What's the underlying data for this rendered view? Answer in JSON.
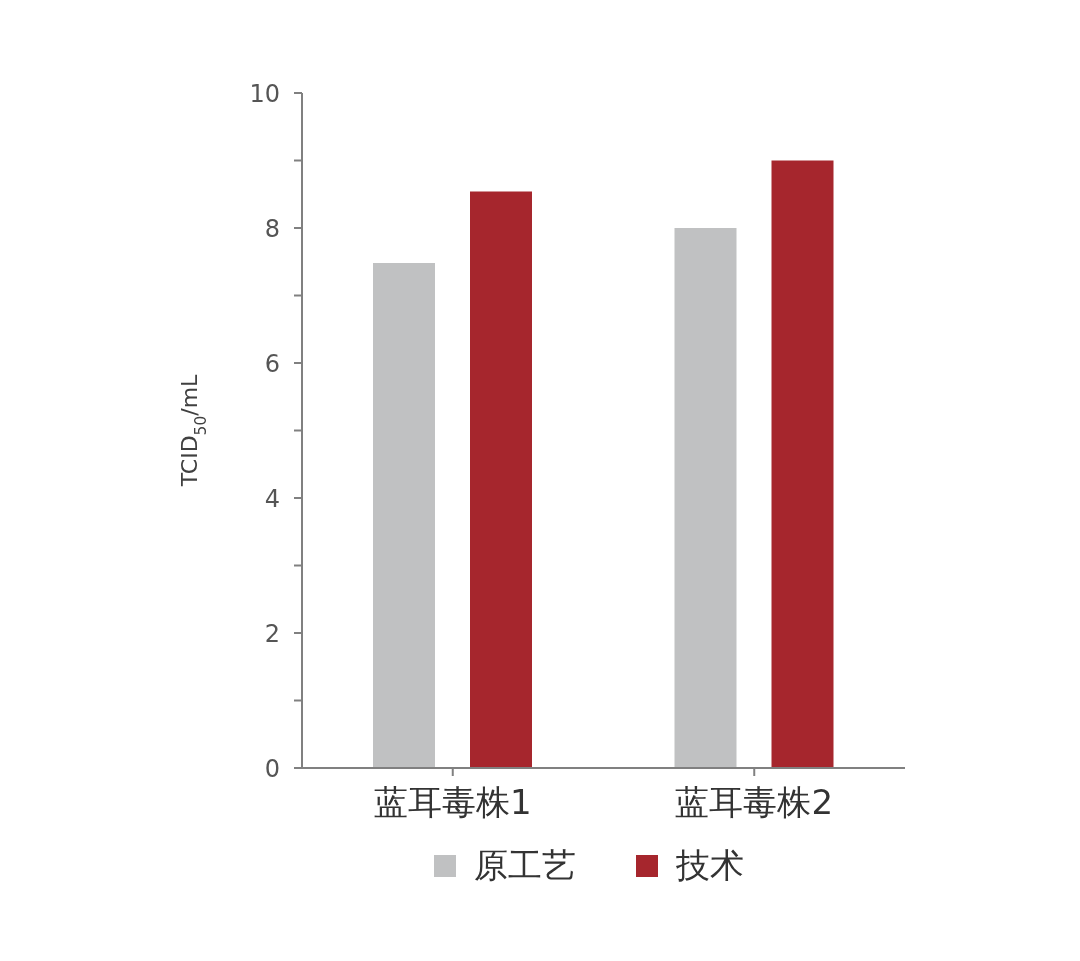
{
  "chart_data": {
    "type": "bar",
    "ylabel": "TCID$_{50}$/mL",
    "categories": [
      "蓝耳毒株1",
      "蓝耳毒株2"
    ],
    "series": [
      {
        "name": "原工艺",
        "color": "#c0c1c2",
        "values": [
          7.48,
          8.0
        ]
      },
      {
        "name": "技术",
        "color": "#a6262d",
        "values": [
          8.54,
          9.0
        ]
      }
    ],
    "ylim": [
      0,
      10
    ],
    "yticks": [
      0,
      {
        "value": 1,
        "label": null
      },
      2,
      {
        "value": 3,
        "label": null
      },
      4,
      {
        "value": 5,
        "label": null
      },
      6,
      {
        "value": 7,
        "label": null
      },
      8,
      {
        "value": 9,
        "label": null
      },
      10
    ],
    "grid": false,
    "legend": "bottom"
  }
}
